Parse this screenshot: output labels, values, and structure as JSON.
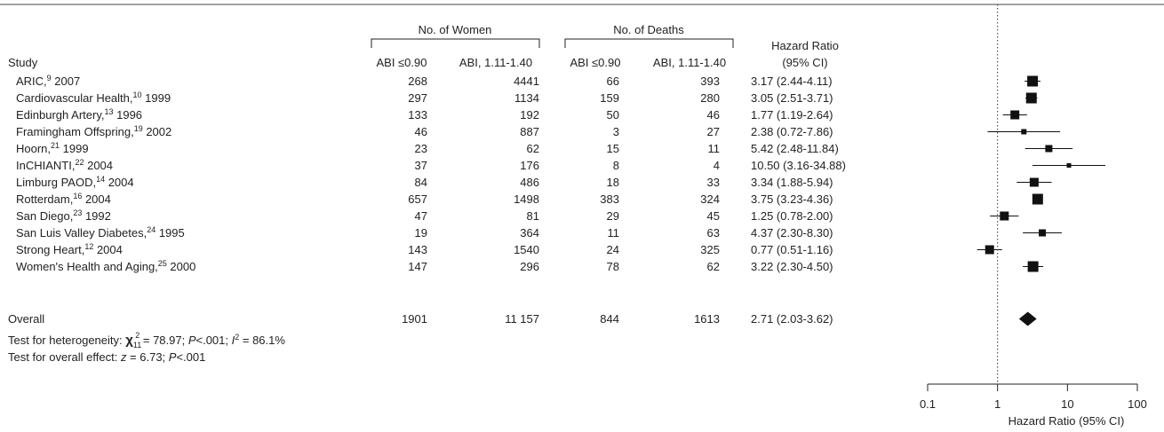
{
  "chart_data": {
    "type": "forest",
    "header": {
      "study": "Study",
      "group_women": "No. of Women",
      "group_deaths": "No. of Deaths",
      "col_abi_low": "ABI ≤0.90",
      "col_abi_normal": "ABI, 1.11-1.40",
      "hr_line1": "Hazard Ratio",
      "hr_line2": "(95% CI)"
    },
    "studies": [
      {
        "name": "ARIC,",
        "ref": "9",
        "year": " 2007",
        "women_low": "268",
        "women_norm": "4441",
        "deaths_low": "66",
        "deaths_norm": "393",
        "hr_text": "3.17 (2.44-4.11)",
        "hr": 3.17,
        "lo": 2.44,
        "hi": 4.11,
        "weight": "large"
      },
      {
        "name": "Cardiovascular Health,",
        "ref": "10",
        "year": " 1999",
        "women_low": "297",
        "women_norm": "1134",
        "deaths_low": "159",
        "deaths_norm": "280",
        "hr_text": "3.05 (2.51-3.71)",
        "hr": 3.05,
        "lo": 2.51,
        "hi": 3.71,
        "weight": "large"
      },
      {
        "name": "Edinburgh Artery,",
        "ref": "13",
        "year": " 1996",
        "women_low": "133",
        "women_norm": "192",
        "deaths_low": "50",
        "deaths_norm": "46",
        "hr_text": "1.77 (1.19-2.64)",
        "hr": 1.77,
        "lo": 1.19,
        "hi": 2.64,
        "weight": "medium"
      },
      {
        "name": "Framingham Offspring,",
        "ref": "19",
        "year": " 2002",
        "women_low": "46",
        "women_norm": "887",
        "deaths_low": "3",
        "deaths_norm": "27",
        "hr_text": "2.38 (0.72-7.86)",
        "hr": 2.38,
        "lo": 0.72,
        "hi": 7.86,
        "weight": "small"
      },
      {
        "name": "Hoorn,",
        "ref": "21",
        "year": " 1999",
        "women_low": "23",
        "women_norm": "62",
        "deaths_low": "15",
        "deaths_norm": "11",
        "hr_text": "5.42 (2.48-11.84)",
        "hr": 5.42,
        "lo": 2.48,
        "hi": 11.84,
        "weight": "small-medium"
      },
      {
        "name": "InCHIANTI,",
        "ref": "22",
        "year": " 2004",
        "women_low": "37",
        "women_norm": "176",
        "deaths_low": "8",
        "deaths_norm": "4",
        "hr_text": "10.50 (3.16-34.88)",
        "hr": 10.5,
        "lo": 3.16,
        "hi": 34.88,
        "weight": "tiny"
      },
      {
        "name": "Limburg PAOD,",
        "ref": "14",
        "year": " 2004",
        "women_low": "84",
        "women_norm": "486",
        "deaths_low": "18",
        "deaths_norm": "33",
        "hr_text": "3.34 (1.88-5.94)",
        "hr": 3.34,
        "lo": 1.88,
        "hi": 5.94,
        "weight": "medium"
      },
      {
        "name": "Rotterdam,",
        "ref": "16",
        "year": " 2004",
        "women_low": "657",
        "women_norm": "1498",
        "deaths_low": "383",
        "deaths_norm": "324",
        "hr_text": "3.75 (3.23-4.36)",
        "hr": 3.75,
        "lo": 3.23,
        "hi": 4.36,
        "weight": "large"
      },
      {
        "name": "San Diego,",
        "ref": "23",
        "year": " 1992",
        "women_low": "47",
        "women_norm": "81",
        "deaths_low": "29",
        "deaths_norm": "45",
        "hr_text": "1.25 (0.78-2.00)",
        "hr": 1.25,
        "lo": 0.78,
        "hi": 2.0,
        "weight": "medium"
      },
      {
        "name": "San Luis Valley Diabetes,",
        "ref": "24",
        "year": " 1995",
        "women_low": "19",
        "women_norm": "364",
        "deaths_low": "11",
        "deaths_norm": "63",
        "hr_text": "4.37 (2.30-8.30)",
        "hr": 4.37,
        "lo": 2.3,
        "hi": 8.3,
        "weight": "small-medium"
      },
      {
        "name": "Strong Heart,",
        "ref": "12",
        "year": " 2004",
        "women_low": "143",
        "women_norm": "1540",
        "deaths_low": "24",
        "deaths_norm": "325",
        "hr_text": "0.77 (0.51-1.16)",
        "hr": 0.77,
        "lo": 0.51,
        "hi": 1.16,
        "weight": "medium"
      },
      {
        "name": "Women's Health and Aging,",
        "ref": "25",
        "year": " 2000",
        "women_low": "147",
        "women_norm": "296",
        "deaths_low": "78",
        "deaths_norm": "62",
        "hr_text": "3.22 (2.30-4.50)",
        "hr": 3.22,
        "lo": 2.3,
        "hi": 4.5,
        "weight": "large"
      }
    ],
    "overall": {
      "label": "Overall",
      "women_low": "1901",
      "women_norm": "11 157",
      "deaths_low": "844",
      "deaths_norm": "1613",
      "hr_text": "2.71 (2.03-3.62)",
      "hr": 2.71,
      "lo": 2.03,
      "hi": 3.62
    },
    "heterogeneity": {
      "prefix": "Test for heterogeneity: ",
      "chi": "χ",
      "chi_sub": "11",
      "chi_sup": "2",
      "chi_val": " = 78.97; ",
      "p_italic": "P",
      "p_val": "<.001; ",
      "i_italic": "I",
      "i_sup": "2",
      "i_val": " = 86.1%"
    },
    "overall_effect": {
      "prefix": "Test for overall effect: ",
      "z_italic": "z",
      "z_val": " = 6.73; ",
      "p_italic": "P",
      "p_val": "<.001"
    },
    "axis": {
      "scale": "log",
      "ticks": [
        0.1,
        1,
        10,
        100
      ],
      "tick_labels": [
        "0.1",
        "1",
        "10",
        "100"
      ],
      "xlim": [
        0.1,
        100
      ],
      "label": "Hazard Ratio (95% CI)",
      "reference_line": 1
    }
  }
}
